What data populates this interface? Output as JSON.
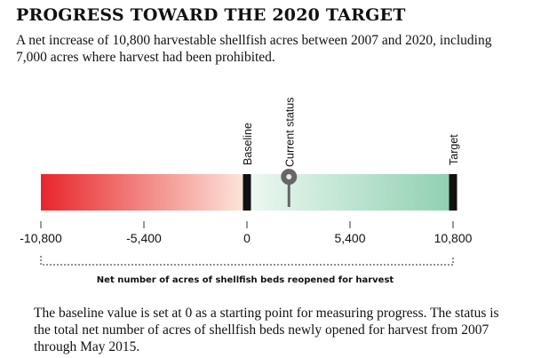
{
  "title": "PROGRESS TOWARD THE 2020 TARGET",
  "subtitle": "A net increase of 10,800 harvestable shellfish acres between 2007 and 2020, including 7,000 acres where harvest had been prohibited.",
  "footnote": "The baseline value is set at 0 as a starting point for measuring progress. The status is the total net number of acres of shellfish beds newly opened for harvest from 2007 through May 2015.",
  "colors": {
    "negative_start": "#e8262b",
    "negative_end": "#fde7dc",
    "positive_start": "#eef8f2",
    "positive_end": "#8fd0b0",
    "marker": "#666666",
    "bar_edge": "#111111"
  },
  "chart_data": {
    "type": "gauge",
    "xlabel": "Net number of acres of shellfish beds reopened for harvest",
    "xlim": [
      -10800,
      10800
    ],
    "ticks": [
      -10800,
      -5400,
      0,
      5400,
      10800
    ],
    "tick_labels": [
      "-10,800",
      "-5,400",
      "0",
      "5,400",
      "10,800"
    ],
    "markers": [
      {
        "label": "Baseline",
        "value": 0
      },
      {
        "label": "Current status",
        "value": 2200
      },
      {
        "label": "Target",
        "value": 10800
      }
    ],
    "current_status": 2200
  }
}
